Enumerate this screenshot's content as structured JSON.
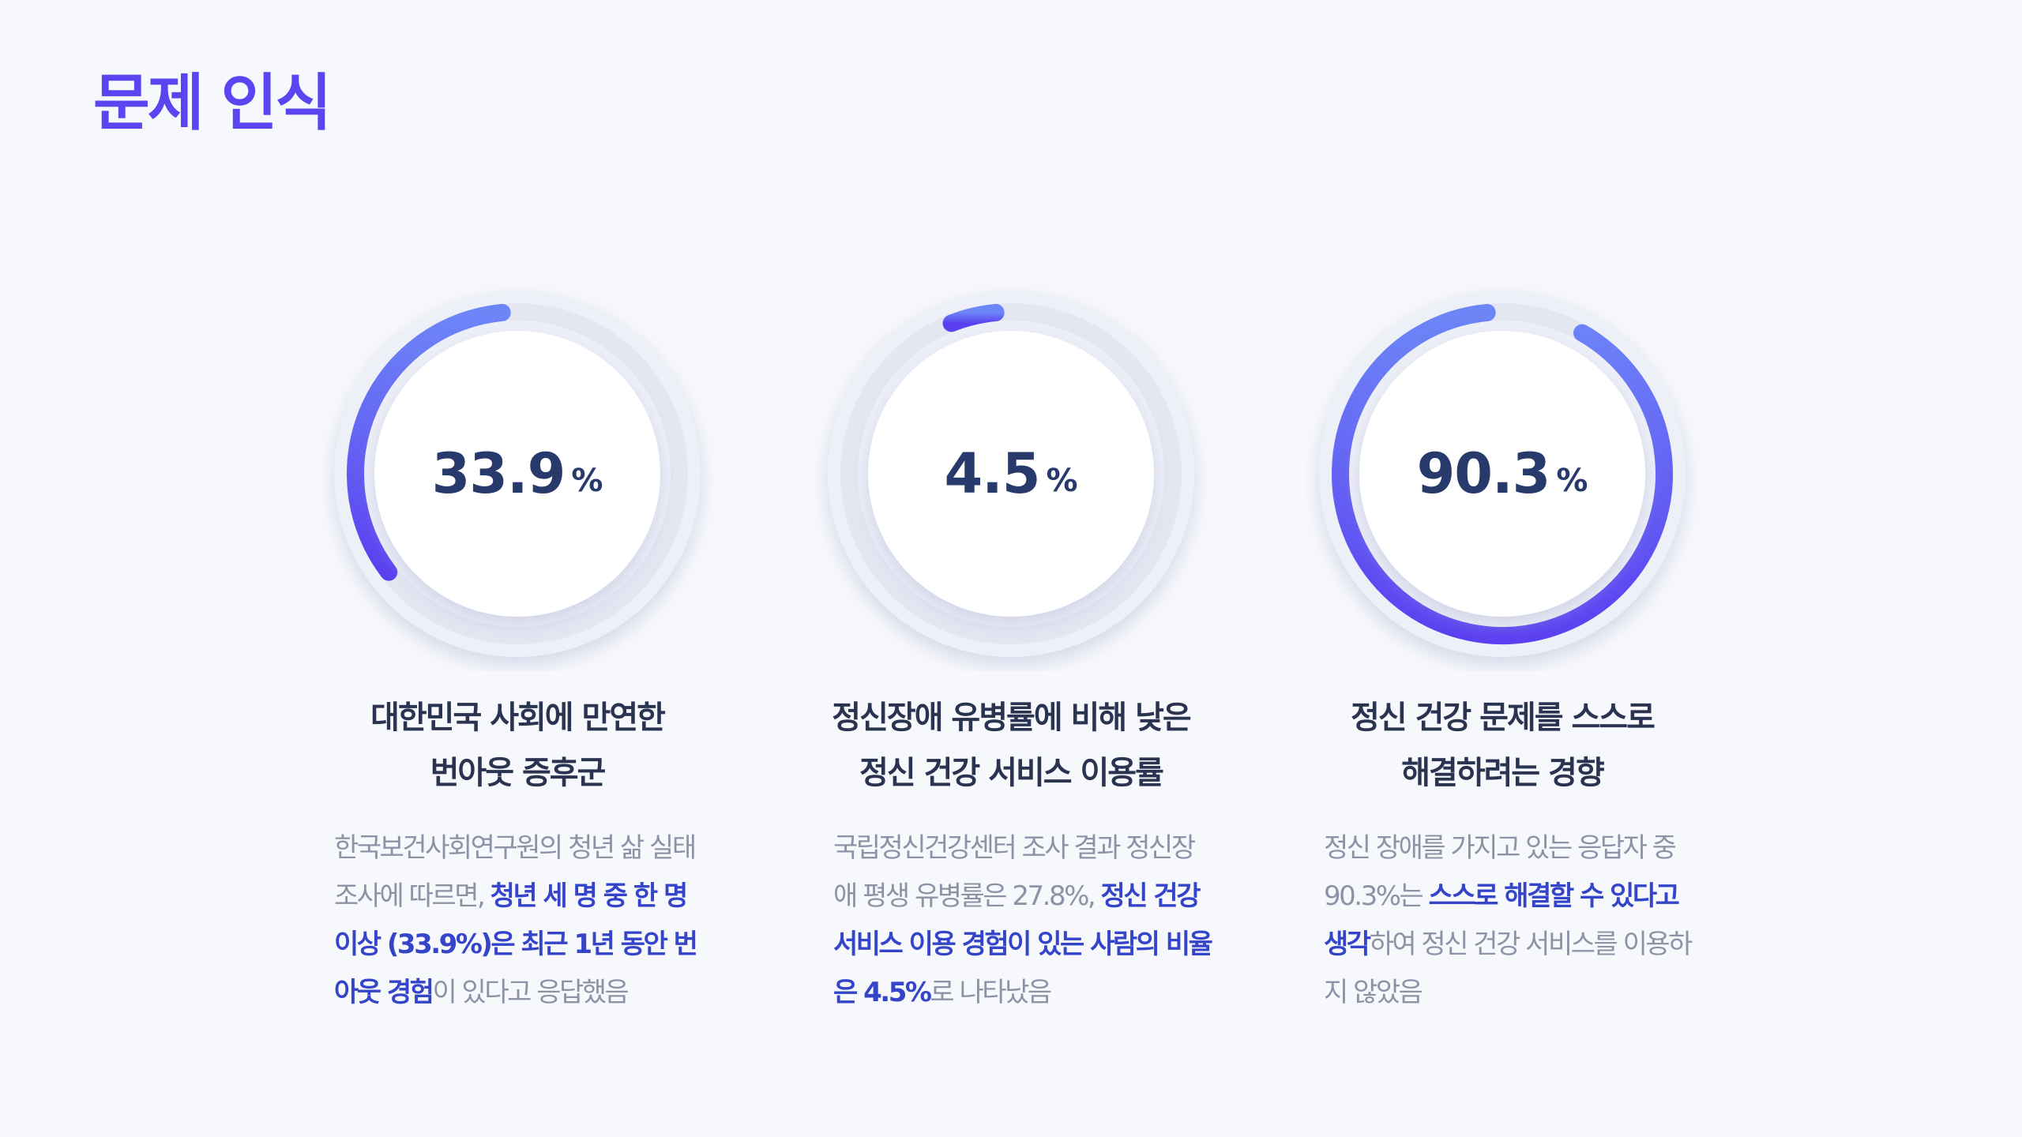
{
  "page": {
    "title": "문제 인식"
  },
  "colors": {
    "accent": "#5b45f0",
    "gauge_start": "#6d86f7",
    "gauge_end": "#5a3ff1",
    "value_text": "#283a6b",
    "highlight_text": "#3545c9",
    "body_text": "#8d93a6"
  },
  "stats": [
    {
      "value": "33.9",
      "unit": "%",
      "fraction": 0.339,
      "heading_line1": "대한민국 사회에 만연한",
      "heading_line2": "번아웃 증후군",
      "desc_pre": "한국보건사회연구원의 청년 삶 실태 조사에 따르면, ",
      "desc_em": "청년 세 명 중 한 명 이상 (33.9%)은 최근 1년 동안 번아웃 경험",
      "desc_post": "이 있다고 응답했음"
    },
    {
      "value": "4.5",
      "unit": "%",
      "fraction": 0.045,
      "heading_line1": "정신장애 유병률에 비해 낮은",
      "heading_line2": "정신 건강 서비스 이용률",
      "desc_pre": "국립정신건강센터 조사 결과 정신장애 평생 유병률은 27.8%, ",
      "desc_em": "정신 건강 서비스 이용 경험이 있는 사람의 비율은 4.5%",
      "desc_post": "로 나타났음"
    },
    {
      "value": "90.3",
      "unit": "%",
      "fraction": 0.903,
      "heading_line1": "정신 건강 문제를 스스로",
      "heading_line2": "해결하려는 경향",
      "desc_pre": "정신 장애를 가지고 있는 응답자 중 90.3%는 ",
      "desc_em": "스스로 해결할 수 있다고 생각",
      "desc_post": "하여 정신 건강 서비스를 이용하지 않았음"
    }
  ]
}
